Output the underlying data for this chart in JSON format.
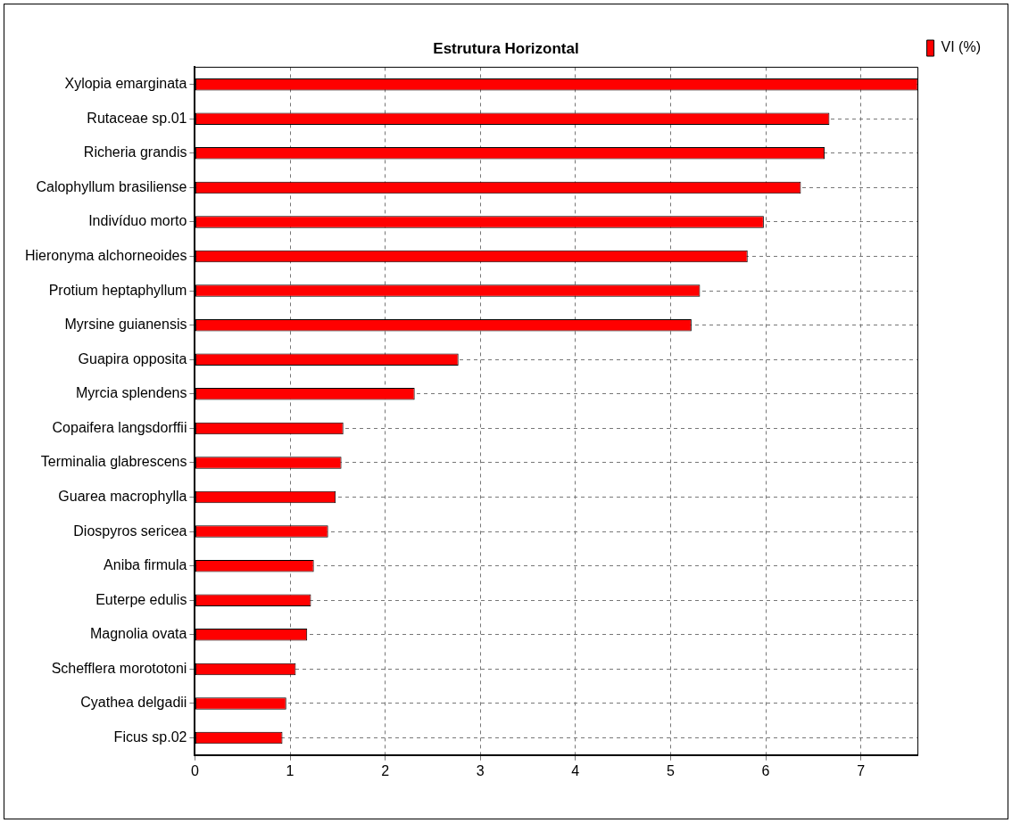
{
  "chart_data": {
    "type": "bar",
    "orientation": "horizontal",
    "title": "Estrutura Horizontal",
    "categories": [
      "Xylopia emarginata",
      "Rutaceae sp.01",
      "Richeria grandis",
      "Calophyllum brasiliense",
      "Indivíduo morto",
      "Hieronyma alchorneoides",
      "Protium heptaphyllum",
      "Myrsine guianensis",
      "Guapira opposita",
      "Myrcia splendens",
      "Copaifera langsdorffii",
      "Terminalia glabrescens",
      "Guarea macrophylla",
      "Diospyros sericea",
      "Aniba firmula",
      "Euterpe edulis",
      "Magnolia ovata",
      "Schefflera morototoni",
      "Cyathea delgadii",
      "Ficus sp.02"
    ],
    "series": [
      {
        "name": "VI (%)",
        "color": "#ff0000",
        "values": [
          7.6,
          6.67,
          6.62,
          6.37,
          5.98,
          5.81,
          5.31,
          5.22,
          2.77,
          2.31,
          1.56,
          1.54,
          1.48,
          1.4,
          1.25,
          1.22,
          1.18,
          1.06,
          0.96,
          0.92
        ]
      }
    ],
    "xlim": [
      0,
      7.6
    ],
    "xticks": [
      0,
      1,
      2,
      3,
      4,
      5,
      6,
      7
    ],
    "grid": true,
    "legend": "top right"
  }
}
